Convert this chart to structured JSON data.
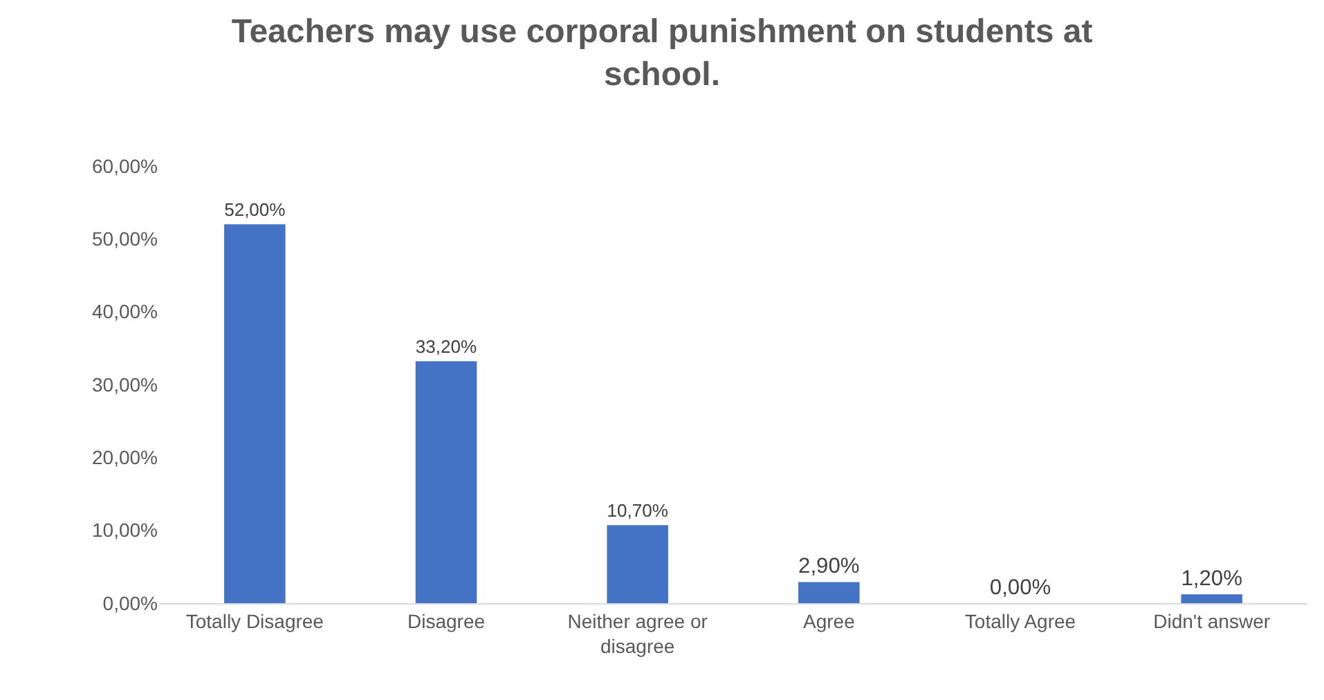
{
  "chart_data": {
    "type": "bar",
    "title": "Teachers may use corporal punishment on students at school.",
    "categories": [
      "Totally Disagree",
      "Disagree",
      "Neither agree or disagree",
      "Agree",
      "Totally Agree",
      "Didn't answer"
    ],
    "values": [
      52,
      33.2,
      10.7,
      2.9,
      0,
      1.2
    ],
    "value_labels": [
      "52,00%",
      "33,20%",
      "10,70%",
      "2,90%",
      "0,00%",
      "1,20%"
    ],
    "color": "#4472c4",
    "ylim": [
      0,
      60
    ],
    "yticks": [
      {
        "value": 0,
        "label": "0,00%"
      },
      {
        "value": 10,
        "label": "10,00%"
      },
      {
        "value": 20,
        "label": "20,00%"
      },
      {
        "value": 30,
        "label": "30,00%"
      },
      {
        "value": 40,
        "label": "40,00%"
      },
      {
        "value": 50,
        "label": "50,00%"
      },
      {
        "value": 60,
        "label": "60,00%"
      }
    ],
    "grid": false
  }
}
